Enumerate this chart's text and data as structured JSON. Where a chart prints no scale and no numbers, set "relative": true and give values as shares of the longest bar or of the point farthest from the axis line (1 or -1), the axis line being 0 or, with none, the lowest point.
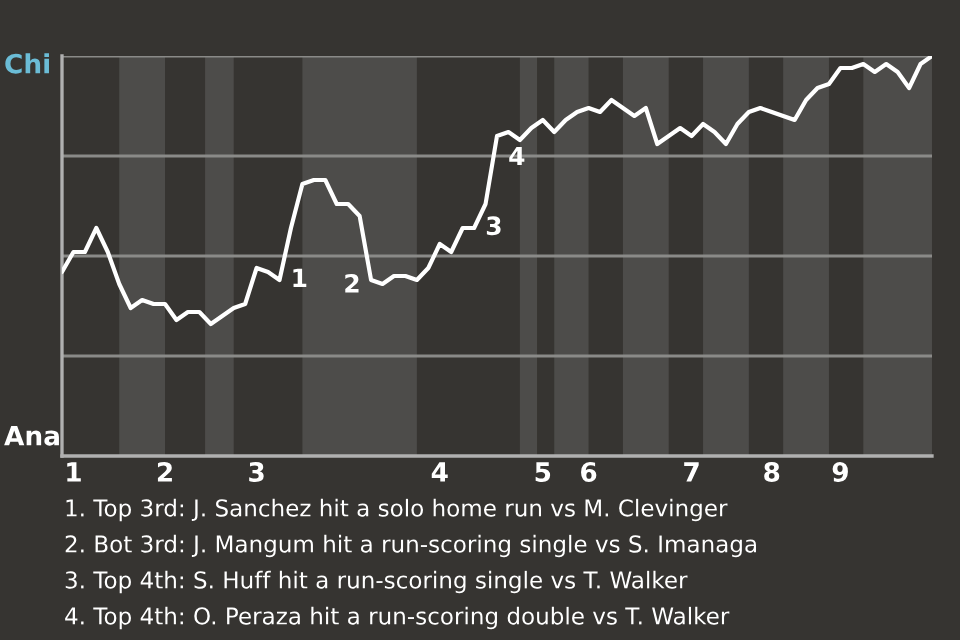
{
  "chart_data": {
    "type": "line",
    "relative": true,
    "categories": [
      null,
      "1",
      null,
      null,
      null,
      null,
      null,
      null,
      null,
      "2",
      null,
      null,
      null,
      null,
      null,
      null,
      null,
      "3",
      null,
      null,
      null,
      null,
      null,
      null,
      null,
      null,
      null,
      null,
      null,
      null,
      null,
      null,
      null,
      "4",
      null,
      null,
      null,
      null,
      null,
      null,
      null,
      null,
      "5",
      null,
      null,
      null,
      "6",
      null,
      null,
      null,
      null,
      null,
      null,
      null,
      null,
      "7",
      null,
      null,
      null,
      null,
      null,
      null,
      "8",
      null,
      null,
      null,
      null,
      null,
      "9",
      null,
      null,
      null,
      null,
      null,
      null,
      null,
      null
    ],
    "series": [
      {
        "color": "#ffffff",
        "values": [
          0.46,
          0.51,
          0.51,
          0.57,
          0.51,
          0.43,
          0.37,
          0.39,
          0.38,
          0.38,
          0.34,
          0.36,
          0.36,
          0.33,
          0.35,
          0.37,
          0.38,
          0.47,
          0.46,
          0.44,
          0.57,
          0.68,
          0.69,
          0.69,
          0.63,
          0.63,
          0.6,
          0.44,
          0.43,
          0.45,
          0.45,
          0.44,
          0.47,
          0.53,
          0.51,
          0.57,
          0.57,
          0.63,
          0.8,
          0.81,
          0.79,
          0.82,
          0.84,
          0.81,
          0.84,
          0.86,
          0.87,
          0.86,
          0.89,
          0.87,
          0.85,
          0.87,
          0.78,
          0.8,
          0.82,
          0.8,
          0.83,
          0.81,
          0.78,
          0.83,
          0.86,
          0.87,
          0.86,
          0.85,
          0.84,
          0.89,
          0.92,
          0.93,
          0.97,
          0.97,
          0.98,
          0.96,
          0.98,
          0.96,
          0.92,
          0.98,
          1.0
        ],
        "line_style": "solid"
      }
    ],
    "ref_lines": [
      {
        "axis": "y",
        "value": 0.25,
        "color": "#8a8a88"
      },
      {
        "axis": "y",
        "value": 0.5,
        "color": "#8a8a88"
      },
      {
        "axis": "y",
        "value": 0.75,
        "color": "#8a8a88"
      },
      {
        "axis": "y",
        "value": 1.0,
        "color": "#8a8a88"
      }
    ],
    "annotations": [
      "Chi",
      "Ana",
      "1",
      "2",
      "3",
      "4",
      "1. Top 3rd: J. Sanchez hit a solo home run vs M. Clevinger",
      "2. Bot 3rd: J. Mangum hit a run-scoring single vs S. Imanaga",
      "3. Top 4th: S. Huff hit a run-scoring single vs T. Walker",
      "4. Top 4th: O. Peraza hit a run-scoring double vs T. Walker"
    ]
  }
}
